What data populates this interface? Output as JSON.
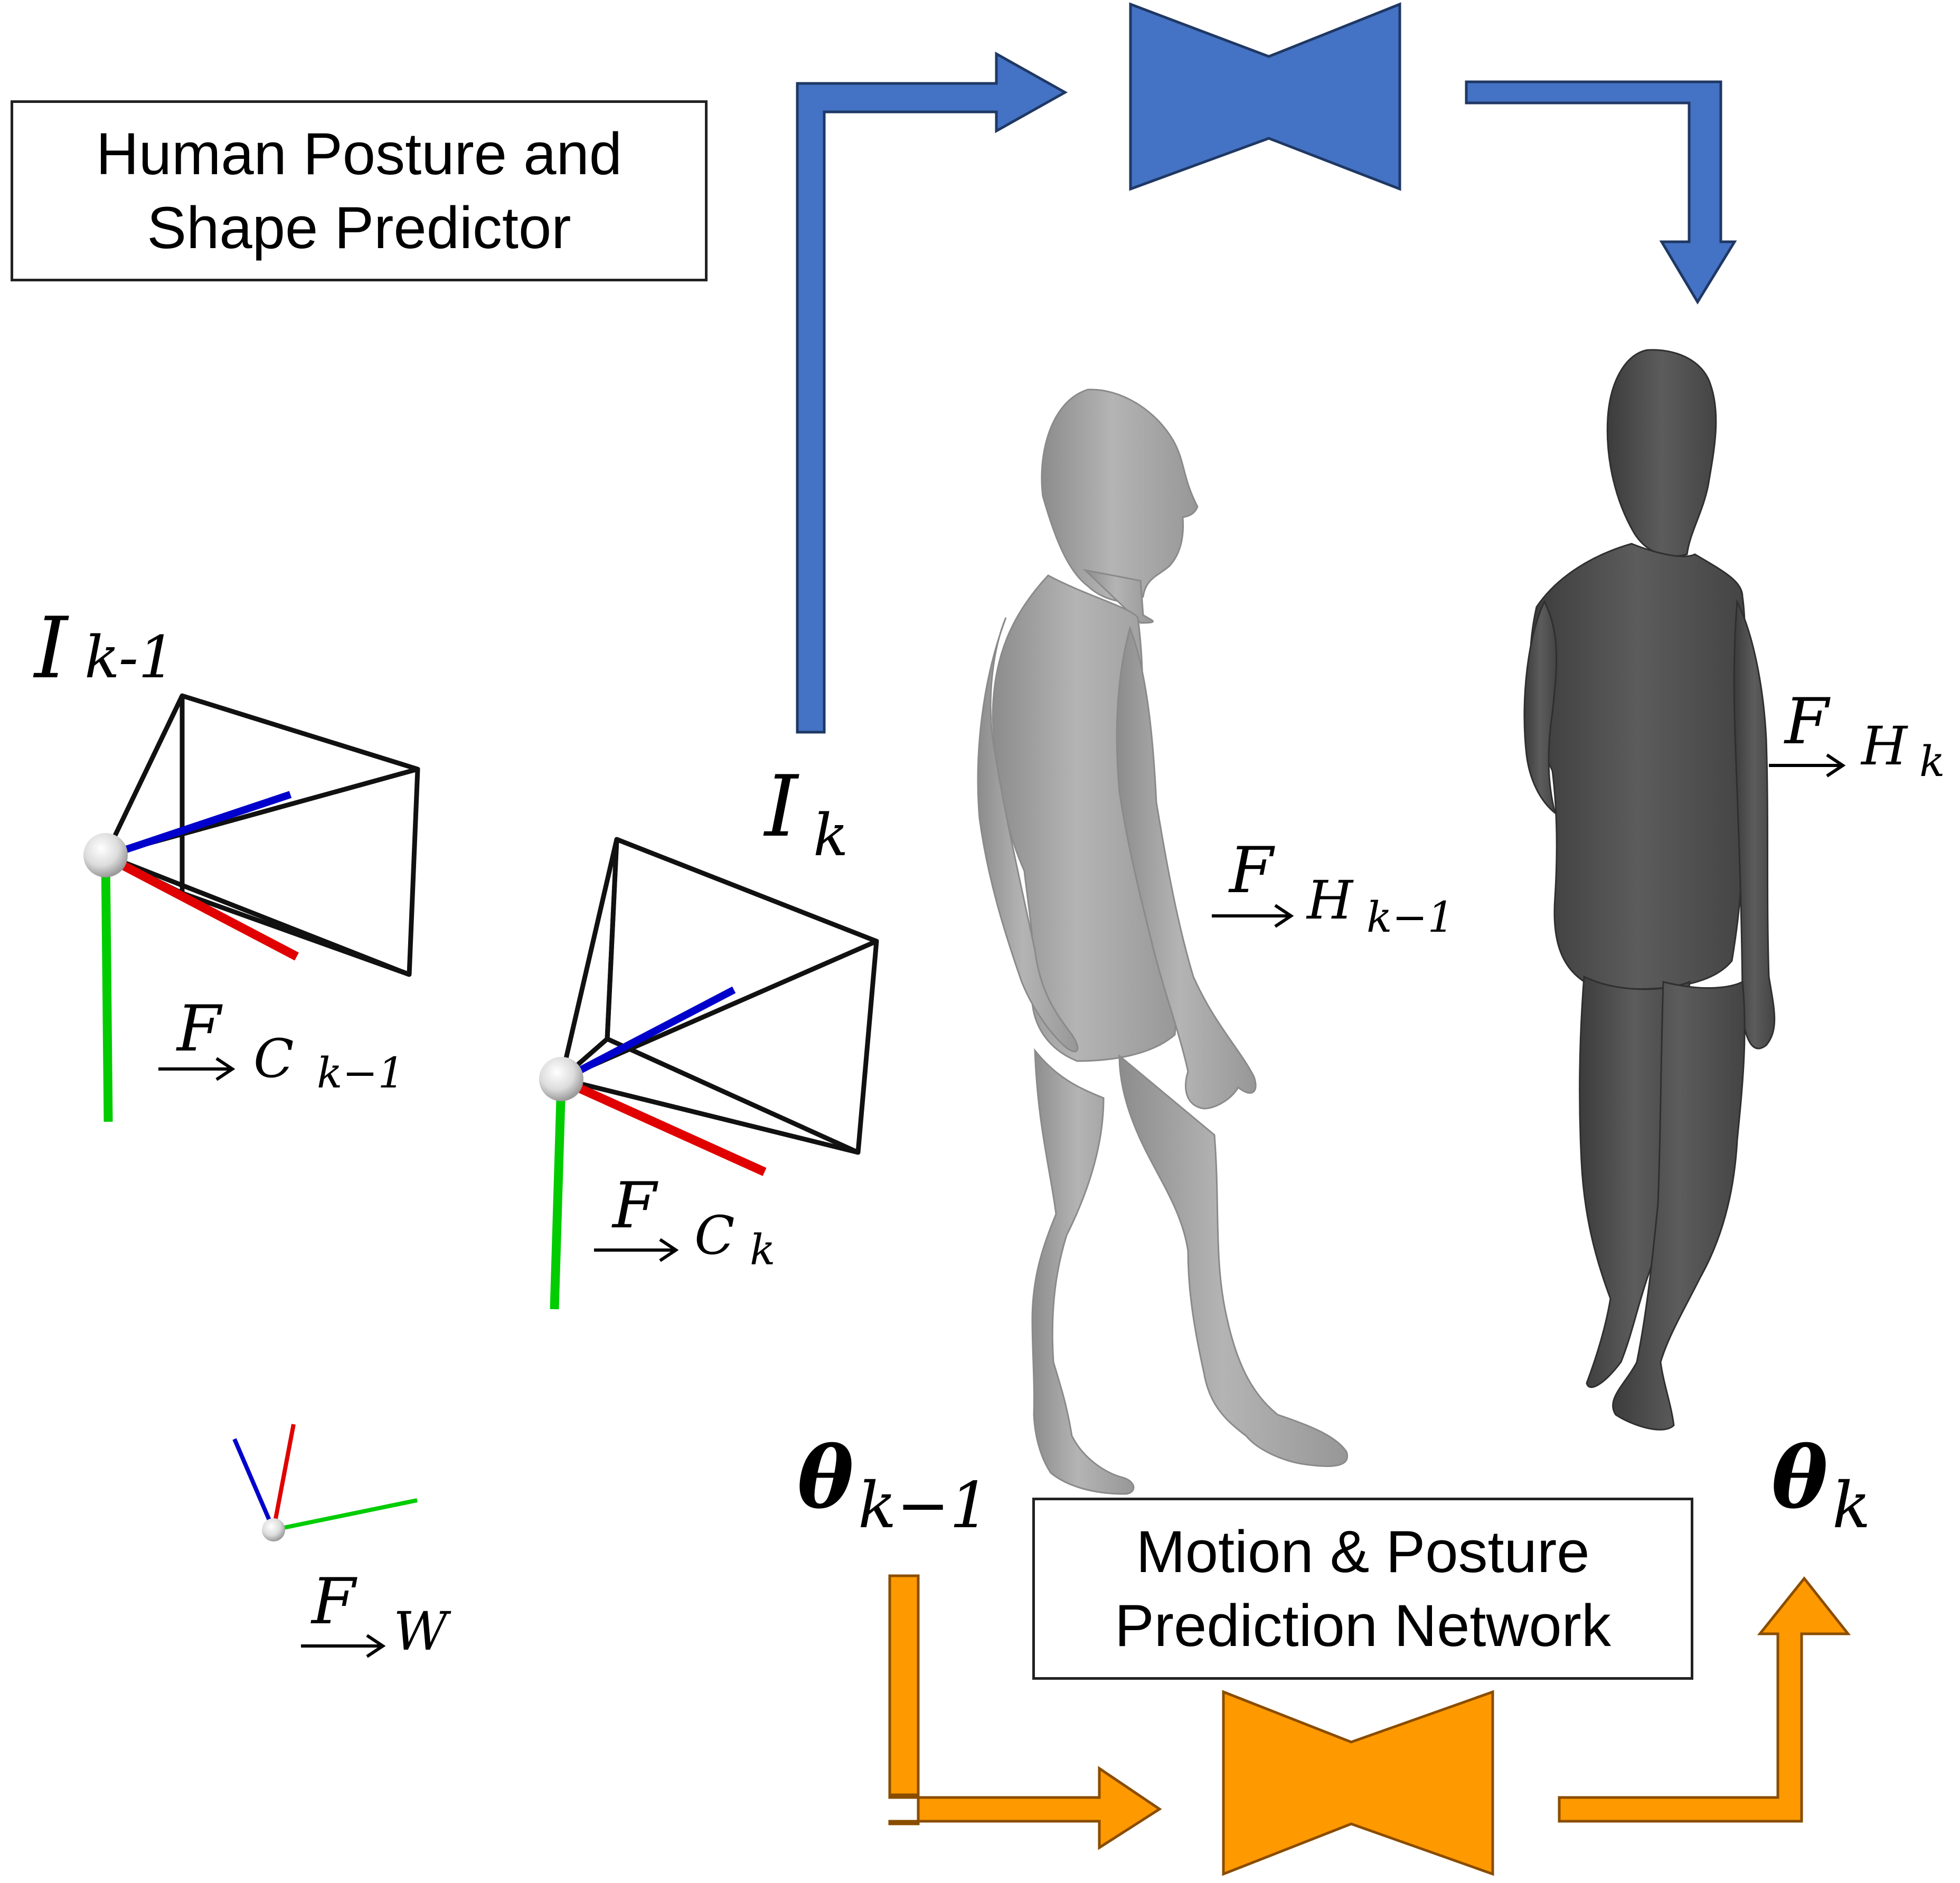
{
  "diagram": {
    "predictor_box": {
      "line1": "Human Posture and",
      "line2": "Shape Predictor"
    },
    "network_box": {
      "line1": "Motion & Posture",
      "line2": "Prediction Network"
    },
    "labels": {
      "image_prev": {
        "base": "I",
        "sub": "k-1"
      },
      "image_curr": {
        "base": "I",
        "sub": "k"
      },
      "frame_camera_prev": {
        "base": "F",
        "sub": "C",
        "subsub": "k−1"
      },
      "frame_camera_curr": {
        "base": "F",
        "sub": "C",
        "subsub": "k"
      },
      "frame_world": {
        "base": "F",
        "sub": "W"
      },
      "frame_human_prev": {
        "base": "F",
        "sub": "H",
        "subsub": "k−1"
      },
      "frame_human_curr": {
        "base": "F",
        "sub": "H",
        "subsub": "k"
      },
      "theta_prev": {
        "base": "θ",
        "sub": "k−1"
      },
      "theta_curr": {
        "base": "θ",
        "sub": "k"
      }
    },
    "colors": {
      "predictor_arrows": "#4472c4",
      "network_arrows": "#ff9900",
      "axis_x": "#e00000",
      "axis_y": "#00cc00",
      "axis_z": "#0000cc",
      "human_prev": "#a6a6a6",
      "human_curr": "#505050",
      "frustum": "#111111"
    }
  }
}
